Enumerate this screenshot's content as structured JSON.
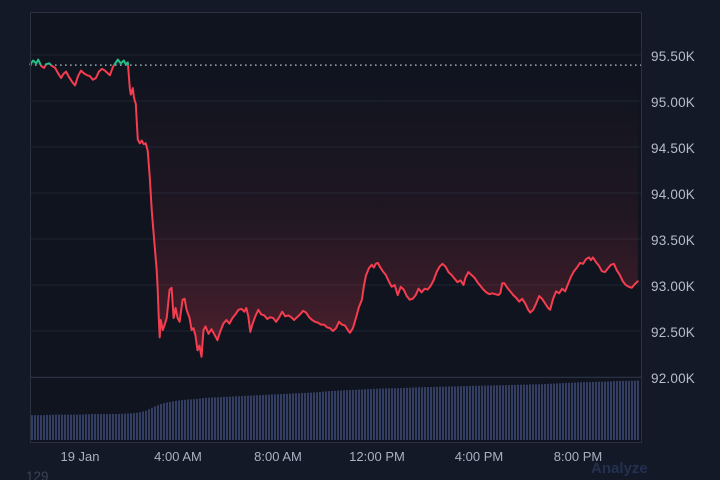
{
  "chart_data": {
    "type": "line",
    "style": "baseline",
    "title": "",
    "x_unit": "hours since chart start (18 Jan 22:00)",
    "x_range": [
      0,
      24.5
    ],
    "y_range_k": [
      91.97,
      95.97
    ],
    "baseline_k": 95.39,
    "grid": "horizontal-on",
    "legend": "none",
    "y_ticks": [
      {
        "label": "95.50K",
        "price_k": 95.5
      },
      {
        "label": "95.00K",
        "price_k": 95.0
      },
      {
        "label": "94.50K",
        "price_k": 94.5
      },
      {
        "label": "94.00K",
        "price_k": 94.0
      },
      {
        "label": "93.50K",
        "price_k": 93.5
      },
      {
        "label": "93.00K",
        "price_k": 93.0
      },
      {
        "label": "92.50K",
        "price_k": 92.5
      },
      {
        "label": "92.00K",
        "price_k": 92.0
      }
    ],
    "x_ticks": [
      {
        "label": "19 Jan",
        "t": 2
      },
      {
        "label": "4:00 AM",
        "t": 6
      },
      {
        "label": "8:00 AM",
        "t": 10
      },
      {
        "label": "12:00 PM",
        "t": 14
      },
      {
        "label": "4:00 PM",
        "t": 18
      },
      {
        "label": "8:00 PM",
        "t": 22
      }
    ],
    "colors": {
      "up": "#27bd85",
      "down": "#f53d4f",
      "baseline_dots": "#cbd2e0",
      "grid": "#1c2332",
      "frame": "#2a3142",
      "bg_outer": "#131927",
      "bg_plot": "#0f141f",
      "axis_text": "#b7bdcb",
      "volume": "#343e63"
    },
    "series": [
      {
        "name": "price",
        "high_k": 95.45,
        "low_k": 92.22,
        "last_k": 93.04,
        "points": [
          [
            0,
            95.4
          ],
          [
            0.12,
            95.44
          ],
          [
            0.24,
            95.41
          ],
          [
            0.32,
            95.45
          ],
          [
            0.44,
            95.38
          ],
          [
            0.56,
            95.36
          ],
          [
            0.64,
            95.4
          ],
          [
            0.76,
            95.41
          ],
          [
            0.88,
            95.38
          ],
          [
            1.0,
            95.36
          ],
          [
            1.12,
            95.3
          ],
          [
            1.24,
            95.25
          ],
          [
            1.32,
            95.29
          ],
          [
            1.44,
            95.32
          ],
          [
            1.56,
            95.26
          ],
          [
            1.68,
            95.21
          ],
          [
            1.8,
            95.17
          ],
          [
            1.92,
            95.27
          ],
          [
            2.04,
            95.33
          ],
          [
            2.16,
            95.3
          ],
          [
            2.28,
            95.28
          ],
          [
            2.4,
            95.27
          ],
          [
            2.52,
            95.23
          ],
          [
            2.64,
            95.25
          ],
          [
            2.76,
            95.32
          ],
          [
            2.88,
            95.35
          ],
          [
            3.0,
            95.33
          ],
          [
            3.12,
            95.3
          ],
          [
            3.2,
            95.28
          ],
          [
            3.32,
            95.37
          ],
          [
            3.44,
            95.42
          ],
          [
            3.52,
            95.45
          ],
          [
            3.64,
            95.41
          ],
          [
            3.76,
            95.44
          ],
          [
            3.84,
            95.4
          ],
          [
            3.92,
            95.42
          ],
          [
            3.96,
            95.28
          ],
          [
            4.0,
            95.14
          ],
          [
            4.04,
            95.07
          ],
          [
            4.08,
            95.1
          ],
          [
            4.12,
            95.14
          ],
          [
            4.16,
            95.05
          ],
          [
            4.2,
            95.0
          ],
          [
            4.24,
            94.97
          ],
          [
            4.28,
            94.77
          ],
          [
            4.32,
            94.58
          ],
          [
            4.4,
            94.54
          ],
          [
            4.48,
            94.57
          ],
          [
            4.56,
            94.53
          ],
          [
            4.64,
            94.54
          ],
          [
            4.72,
            94.46
          ],
          [
            4.8,
            94.18
          ],
          [
            4.88,
            93.82
          ],
          [
            4.92,
            93.68
          ],
          [
            5.0,
            93.42
          ],
          [
            5.08,
            93.16
          ],
          [
            5.12,
            92.95
          ],
          [
            5.16,
            92.66
          ],
          [
            5.2,
            92.43
          ],
          [
            5.24,
            92.62
          ],
          [
            5.32,
            92.51
          ],
          [
            5.4,
            92.57
          ],
          [
            5.48,
            92.64
          ],
          [
            5.6,
            92.95
          ],
          [
            5.68,
            92.97
          ],
          [
            5.76,
            92.64
          ],
          [
            5.84,
            92.75
          ],
          [
            5.92,
            92.64
          ],
          [
            6.0,
            92.6
          ],
          [
            6.12,
            92.84
          ],
          [
            6.2,
            92.85
          ],
          [
            6.28,
            92.73
          ],
          [
            6.4,
            92.64
          ],
          [
            6.48,
            92.51
          ],
          [
            6.56,
            92.53
          ],
          [
            6.64,
            92.45
          ],
          [
            6.72,
            92.29
          ],
          [
            6.8,
            92.34
          ],
          [
            6.88,
            92.22
          ],
          [
            6.96,
            92.51
          ],
          [
            7.04,
            92.55
          ],
          [
            7.16,
            92.47
          ],
          [
            7.28,
            92.52
          ],
          [
            7.4,
            92.46
          ],
          [
            7.52,
            92.4
          ],
          [
            7.64,
            92.5
          ],
          [
            7.76,
            92.58
          ],
          [
            7.88,
            92.62
          ],
          [
            8.0,
            92.58
          ],
          [
            8.12,
            92.64
          ],
          [
            8.24,
            92.68
          ],
          [
            8.36,
            92.73
          ],
          [
            8.48,
            92.74
          ],
          [
            8.6,
            92.71
          ],
          [
            8.68,
            92.75
          ],
          [
            8.76,
            92.66
          ],
          [
            8.84,
            92.49
          ],
          [
            8.92,
            92.57
          ],
          [
            9.04,
            92.66
          ],
          [
            9.16,
            92.73
          ],
          [
            9.28,
            92.68
          ],
          [
            9.4,
            92.67
          ],
          [
            9.52,
            92.63
          ],
          [
            9.64,
            92.65
          ],
          [
            9.76,
            92.64
          ],
          [
            9.88,
            92.6
          ],
          [
            10.0,
            92.65
          ],
          [
            10.12,
            92.71
          ],
          [
            10.24,
            92.66
          ],
          [
            10.36,
            92.67
          ],
          [
            10.48,
            92.65
          ],
          [
            10.6,
            92.62
          ],
          [
            10.72,
            92.65
          ],
          [
            10.84,
            92.68
          ],
          [
            10.96,
            92.72
          ],
          [
            11.08,
            92.7
          ],
          [
            11.2,
            92.65
          ],
          [
            11.32,
            92.62
          ],
          [
            11.44,
            92.6
          ],
          [
            11.56,
            92.59
          ],
          [
            11.68,
            92.57
          ],
          [
            11.8,
            92.57
          ],
          [
            11.92,
            92.54
          ],
          [
            12.04,
            92.53
          ],
          [
            12.16,
            92.5
          ],
          [
            12.28,
            92.53
          ],
          [
            12.4,
            92.6
          ],
          [
            12.52,
            92.57
          ],
          [
            12.64,
            92.56
          ],
          [
            12.76,
            92.51
          ],
          [
            12.84,
            92.48
          ],
          [
            12.96,
            92.53
          ],
          [
            13.08,
            92.64
          ],
          [
            13.2,
            92.76
          ],
          [
            13.32,
            92.84
          ],
          [
            13.4,
            92.99
          ],
          [
            13.48,
            93.1
          ],
          [
            13.6,
            93.18
          ],
          [
            13.72,
            93.22
          ],
          [
            13.8,
            93.19
          ],
          [
            13.88,
            93.23
          ],
          [
            13.96,
            93.24
          ],
          [
            14.04,
            93.2
          ],
          [
            14.16,
            93.15
          ],
          [
            14.28,
            93.11
          ],
          [
            14.4,
            93.04
          ],
          [
            14.52,
            92.98
          ],
          [
            14.64,
            93.0
          ],
          [
            14.76,
            92.89
          ],
          [
            14.88,
            92.98
          ],
          [
            15.0,
            92.95
          ],
          [
            15.12,
            92.88
          ],
          [
            15.24,
            92.84
          ],
          [
            15.36,
            92.85
          ],
          [
            15.48,
            92.89
          ],
          [
            15.6,
            92.96
          ],
          [
            15.72,
            92.92
          ],
          [
            15.84,
            92.96
          ],
          [
            15.96,
            92.95
          ],
          [
            16.08,
            92.99
          ],
          [
            16.2,
            93.05
          ],
          [
            16.32,
            93.14
          ],
          [
            16.44,
            93.2
          ],
          [
            16.56,
            93.23
          ],
          [
            16.68,
            93.2
          ],
          [
            16.8,
            93.14
          ],
          [
            16.92,
            93.11
          ],
          [
            17.04,
            93.07
          ],
          [
            17.16,
            93.03
          ],
          [
            17.28,
            93.05
          ],
          [
            17.4,
            93.0
          ],
          [
            17.48,
            93.08
          ],
          [
            17.6,
            93.14
          ],
          [
            17.72,
            93.11
          ],
          [
            17.84,
            93.08
          ],
          [
            17.96,
            93.03
          ],
          [
            18.08,
            92.99
          ],
          [
            18.2,
            92.95
          ],
          [
            18.32,
            92.92
          ],
          [
            18.44,
            92.9
          ],
          [
            18.56,
            92.91
          ],
          [
            18.68,
            92.9
          ],
          [
            18.8,
            92.89
          ],
          [
            18.88,
            92.91
          ],
          [
            18.96,
            93.02
          ],
          [
            19.04,
            93.02
          ],
          [
            19.16,
            92.97
          ],
          [
            19.28,
            92.93
          ],
          [
            19.4,
            92.89
          ],
          [
            19.52,
            92.86
          ],
          [
            19.64,
            92.82
          ],
          [
            19.76,
            92.85
          ],
          [
            19.88,
            92.8
          ],
          [
            20.0,
            92.73
          ],
          [
            20.08,
            92.7
          ],
          [
            20.2,
            92.73
          ],
          [
            20.32,
            92.8
          ],
          [
            20.44,
            92.88
          ],
          [
            20.56,
            92.85
          ],
          [
            20.68,
            92.8
          ],
          [
            20.8,
            92.75
          ],
          [
            20.88,
            92.73
          ],
          [
            21.0,
            92.85
          ],
          [
            21.12,
            92.93
          ],
          [
            21.24,
            92.91
          ],
          [
            21.36,
            92.96
          ],
          [
            21.48,
            92.93
          ],
          [
            21.6,
            93.01
          ],
          [
            21.72,
            93.09
          ],
          [
            21.84,
            93.15
          ],
          [
            21.96,
            93.19
          ],
          [
            22.08,
            93.24
          ],
          [
            22.2,
            93.23
          ],
          [
            22.32,
            93.28
          ],
          [
            22.44,
            93.3
          ],
          [
            22.52,
            93.27
          ],
          [
            22.6,
            93.3
          ],
          [
            22.72,
            93.25
          ],
          [
            22.84,
            93.21
          ],
          [
            22.96,
            93.15
          ],
          [
            23.08,
            93.14
          ],
          [
            23.2,
            93.18
          ],
          [
            23.32,
            93.22
          ],
          [
            23.44,
            93.23
          ],
          [
            23.56,
            93.16
          ],
          [
            23.68,
            93.11
          ],
          [
            23.8,
            93.04
          ],
          [
            23.92,
            93.0
          ],
          [
            24.04,
            92.98
          ],
          [
            24.16,
            92.97
          ],
          [
            24.28,
            93.01
          ],
          [
            24.4,
            93.04
          ]
        ]
      }
    ],
    "volume": {
      "color": "#343e63",
      "relative_heights": [
        [
          0,
          0.4
        ],
        [
          0.5,
          0.4
        ],
        [
          1,
          0.41
        ],
        [
          1.5,
          0.41
        ],
        [
          2,
          0.41
        ],
        [
          2.5,
          0.42
        ],
        [
          3,
          0.42
        ],
        [
          3.5,
          0.42
        ],
        [
          4,
          0.43
        ],
        [
          4.3,
          0.44
        ],
        [
          4.6,
          0.47
        ],
        [
          4.9,
          0.53
        ],
        [
          5.2,
          0.58
        ],
        [
          5.5,
          0.61
        ],
        [
          5.8,
          0.63
        ],
        [
          6.2,
          0.65
        ],
        [
          6.6,
          0.66
        ],
        [
          7,
          0.68
        ],
        [
          7.5,
          0.69
        ],
        [
          8,
          0.7
        ],
        [
          8.5,
          0.71
        ],
        [
          9,
          0.72
        ],
        [
          9.5,
          0.73
        ],
        [
          10,
          0.74
        ],
        [
          10.5,
          0.75
        ],
        [
          11,
          0.76
        ],
        [
          11.5,
          0.77
        ],
        [
          12,
          0.79
        ],
        [
          12.5,
          0.8
        ],
        [
          13,
          0.81
        ],
        [
          13.5,
          0.82
        ],
        [
          14,
          0.83
        ],
        [
          14.5,
          0.835
        ],
        [
          15,
          0.84
        ],
        [
          15.5,
          0.85
        ],
        [
          16,
          0.855
        ],
        [
          16.5,
          0.86
        ],
        [
          17,
          0.865
        ],
        [
          17.5,
          0.87
        ],
        [
          18,
          0.875
        ],
        [
          18.5,
          0.88
        ],
        [
          19,
          0.885
        ],
        [
          19.5,
          0.89
        ],
        [
          20,
          0.895
        ],
        [
          20.5,
          0.9
        ],
        [
          21,
          0.91
        ],
        [
          21.5,
          0.92
        ],
        [
          22,
          0.93
        ],
        [
          22.5,
          0.935
        ],
        [
          23,
          0.94
        ],
        [
          23.5,
          0.95
        ],
        [
          24,
          0.955
        ],
        [
          24.4,
          0.96
        ]
      ]
    }
  },
  "footer": {
    "left_number": "129",
    "analyze_label": "Analyze"
  }
}
